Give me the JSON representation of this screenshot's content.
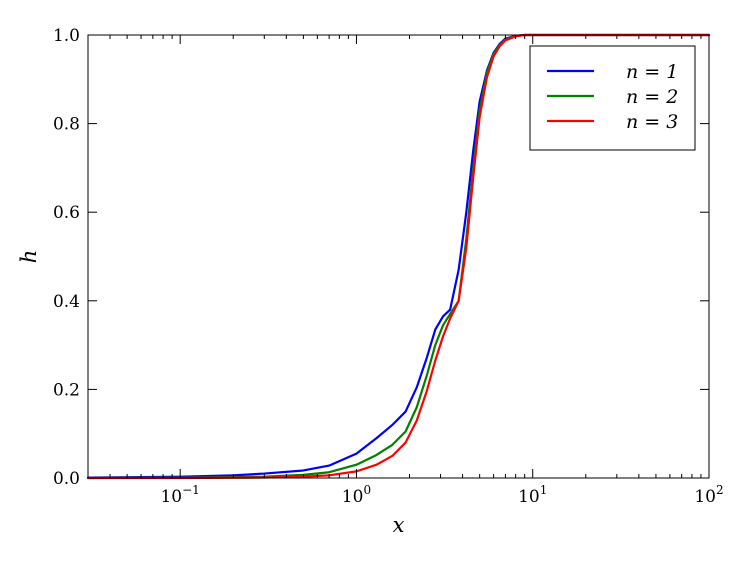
{
  "chart_data": {
    "type": "line",
    "title": "",
    "xlabel": "x",
    "ylabel": "h",
    "xscale": "log",
    "xlim": [
      0.03,
      100
    ],
    "ylim": [
      0.0,
      1.0
    ],
    "grid": false,
    "legend_position": "top-right",
    "x_ticks": [
      {
        "value": 0.1,
        "base": "10",
        "exp": "−1"
      },
      {
        "value": 1,
        "base": "10",
        "exp": "0"
      },
      {
        "value": 10,
        "base": "10",
        "exp": "1"
      },
      {
        "value": 100,
        "base": "10",
        "exp": "2"
      }
    ],
    "y_ticks": [
      {
        "value": 0.0,
        "label": "0.0"
      },
      {
        "value": 0.2,
        "label": "0.2"
      },
      {
        "value": 0.4,
        "label": "0.4"
      },
      {
        "value": 0.6,
        "label": "0.6"
      },
      {
        "value": 0.8,
        "label": "0.8"
      },
      {
        "value": 1.0,
        "label": "1.0"
      }
    ],
    "series": [
      {
        "name": "n = 1",
        "color": "#0000ff",
        "x": [
          0.03,
          0.1,
          0.2,
          0.3,
          0.5,
          0.7,
          1.0,
          1.3,
          1.6,
          1.9,
          2.2,
          2.5,
          2.8,
          3.1,
          3.4,
          3.8,
          4.2,
          4.6,
          5.0,
          5.5,
          6.0,
          6.5,
          7.0,
          8.0,
          9.0,
          10.0,
          20.0,
          100.0
        ],
        "y": [
          0.001,
          0.003,
          0.006,
          0.01,
          0.017,
          0.028,
          0.055,
          0.09,
          0.12,
          0.15,
          0.205,
          0.27,
          0.335,
          0.365,
          0.38,
          0.47,
          0.6,
          0.74,
          0.85,
          0.92,
          0.96,
          0.98,
          0.992,
          0.998,
          1.0,
          1.0,
          1.0,
          1.0
        ]
      },
      {
        "name": "n = 2",
        "color": "#008000",
        "x": [
          0.03,
          0.1,
          0.3,
          0.5,
          0.7,
          1.0,
          1.3,
          1.6,
          1.9,
          2.2,
          2.5,
          2.8,
          3.1,
          3.4,
          3.8,
          4.2,
          4.6,
          5.0,
          5.5,
          6.0,
          6.5,
          7.0,
          8.0,
          9.0,
          10.0,
          20.0,
          100.0
        ],
        "y": [
          0.0,
          0.0005,
          0.003,
          0.007,
          0.013,
          0.03,
          0.052,
          0.075,
          0.105,
          0.16,
          0.23,
          0.3,
          0.345,
          0.37,
          0.4,
          0.54,
          0.7,
          0.83,
          0.915,
          0.957,
          0.978,
          0.99,
          0.998,
          1.0,
          1.0,
          1.0,
          1.0
        ]
      },
      {
        "name": "n = 3",
        "color": "#ff0000",
        "x": [
          0.03,
          0.1,
          0.3,
          0.5,
          0.7,
          1.0,
          1.3,
          1.6,
          1.9,
          2.2,
          2.5,
          2.8,
          3.1,
          3.4,
          3.8,
          4.2,
          4.6,
          5.0,
          5.5,
          6.0,
          6.5,
          7.0,
          8.0,
          9.0,
          10.0,
          20.0,
          100.0
        ],
        "y": [
          0.0,
          0.0,
          0.001,
          0.003,
          0.006,
          0.015,
          0.03,
          0.05,
          0.08,
          0.13,
          0.195,
          0.265,
          0.32,
          0.36,
          0.4,
          0.52,
          0.68,
          0.815,
          0.905,
          0.952,
          0.975,
          0.988,
          0.997,
          1.0,
          1.0,
          1.0,
          1.0
        ]
      }
    ]
  }
}
